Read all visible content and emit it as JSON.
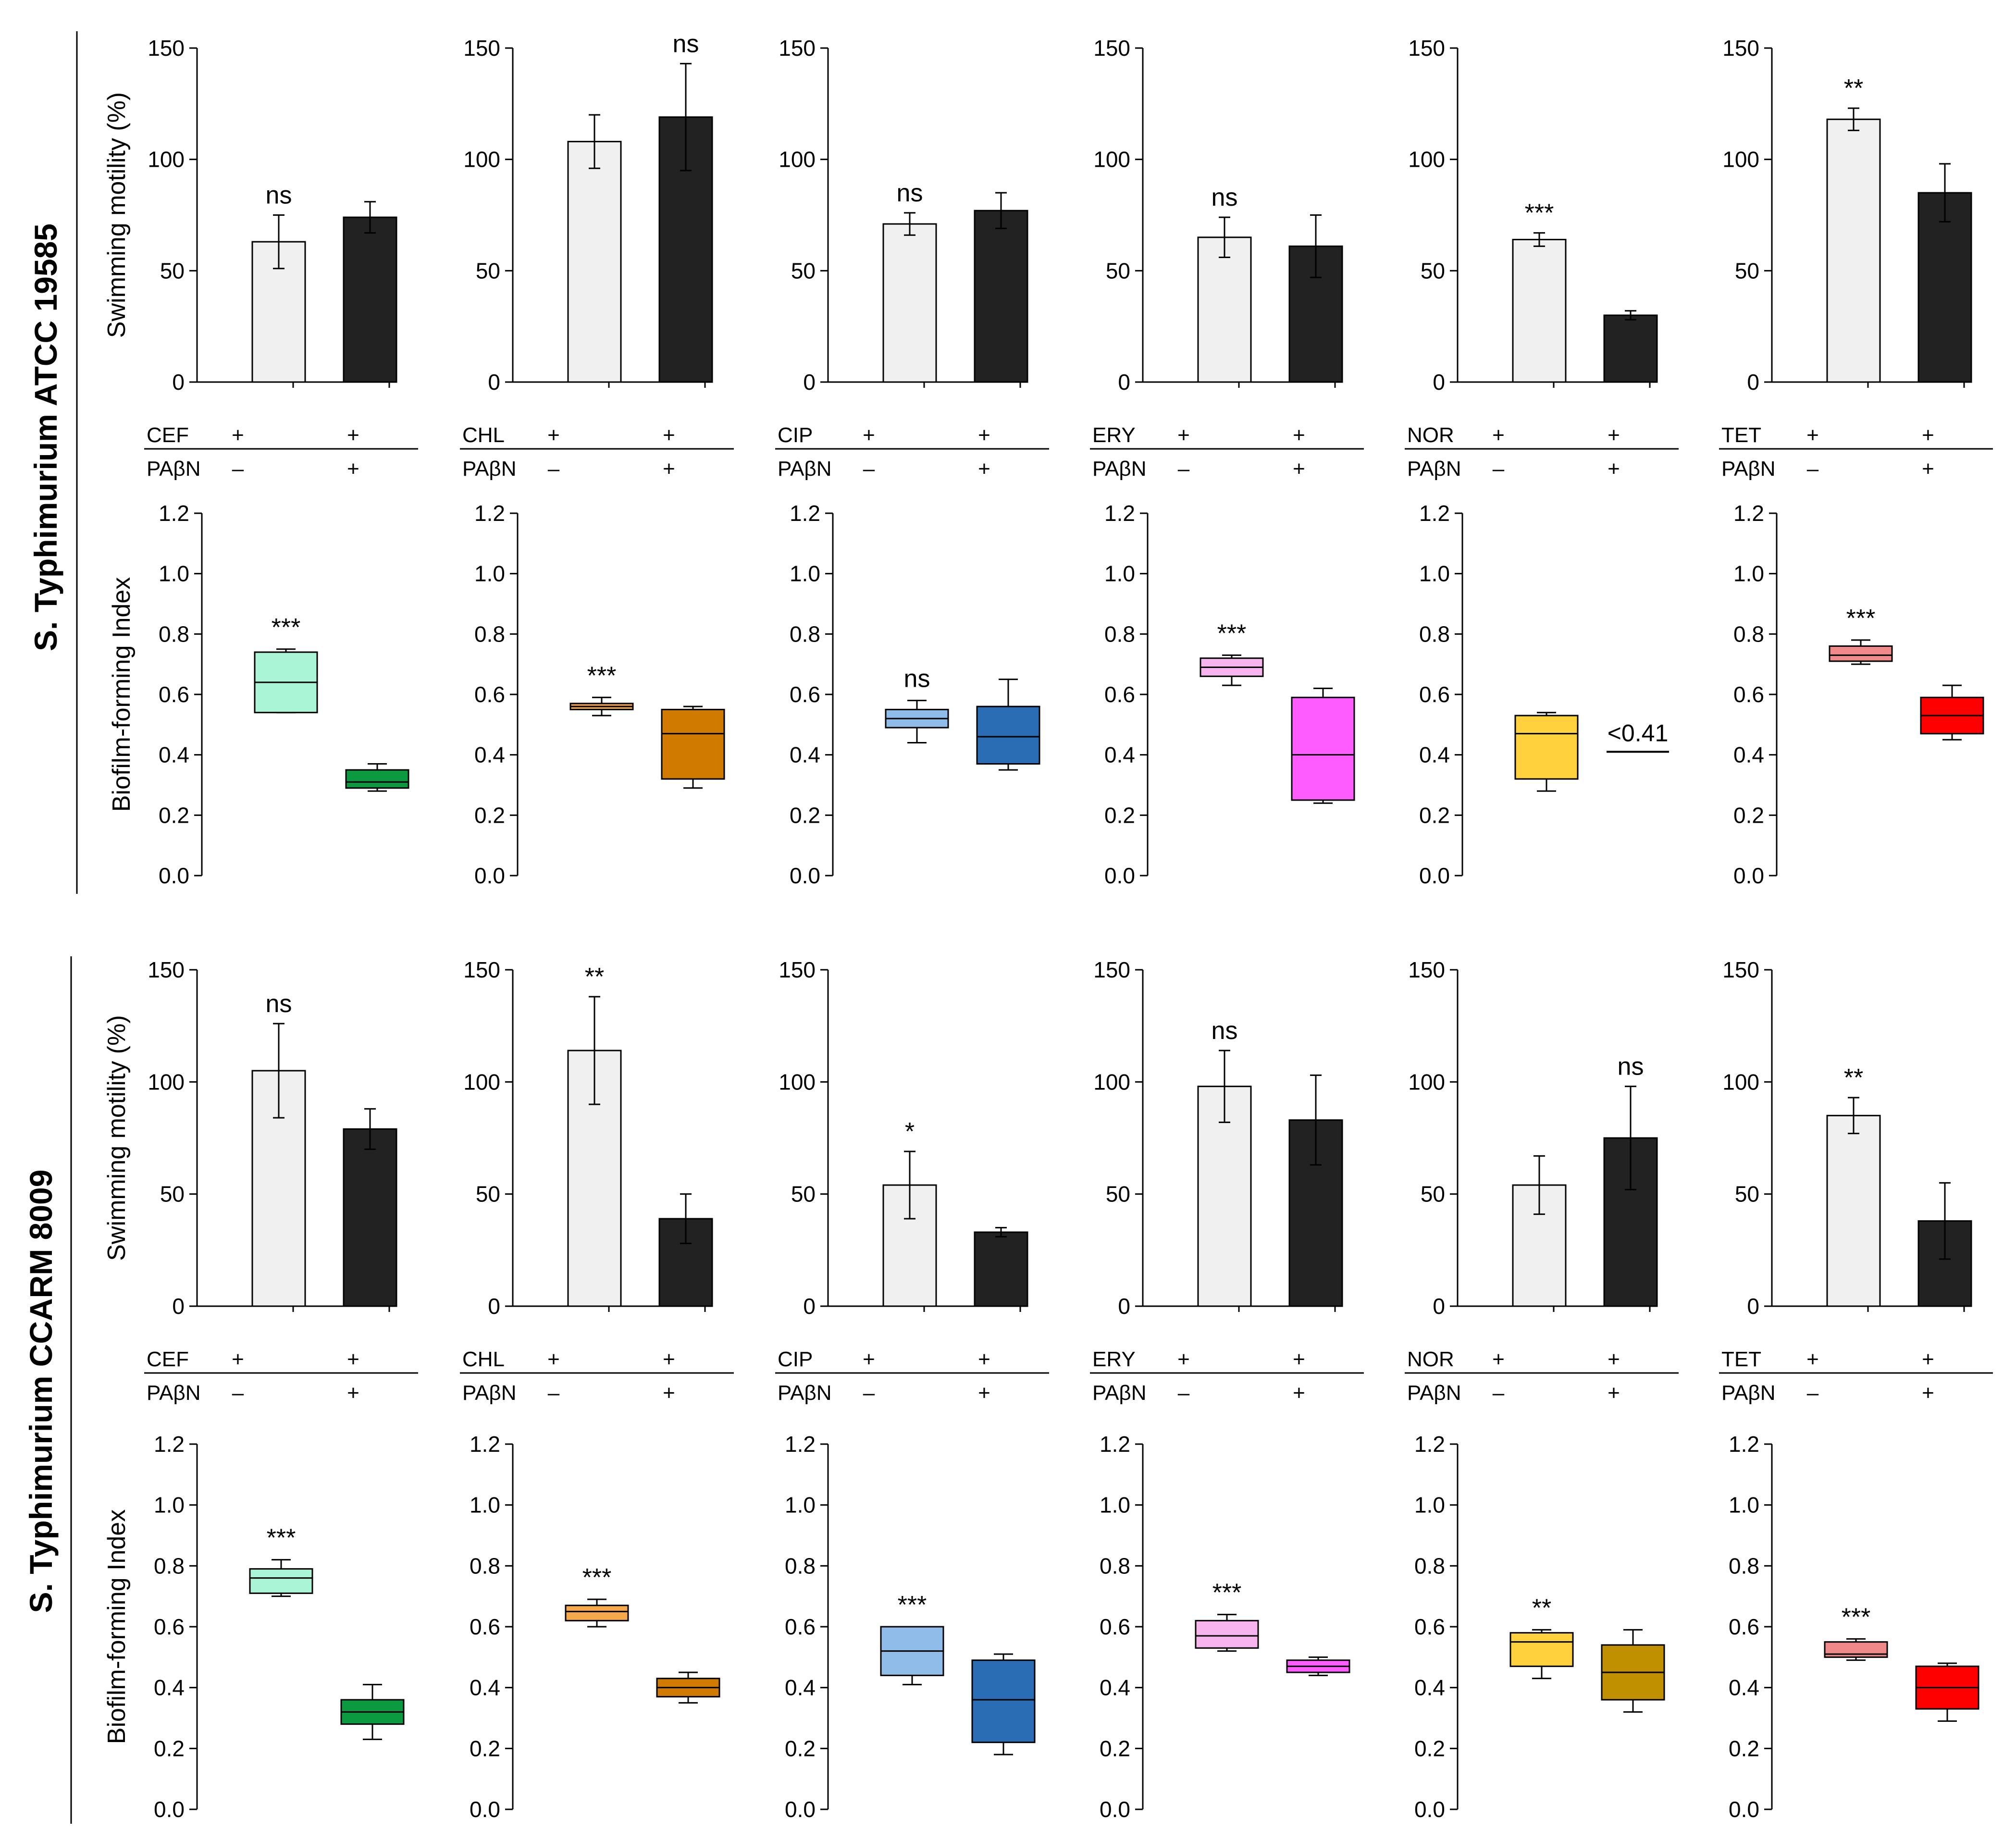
{
  "figure": {
    "panel_ylabel_swim": "Swimming motility (%)",
    "panel_ylabel_biofilm": "Biofilm-forming Index",
    "inhibitor_label": "PAβN",
    "symbols": {
      "present": "+",
      "absent": "–"
    }
  },
  "strains": [
    {
      "id": "atcc",
      "label": "S. Typhimurium ATCC 19585"
    },
    {
      "id": "ccarm",
      "label": "S. Typhimurium CCARM 8009"
    }
  ],
  "colors": {
    "bar_without": "#f0f0f0",
    "bar_with": "#222222",
    "CEF": [
      "#aaf5d6",
      "#0b9a3f"
    ],
    "CHL": [
      "#f5a94a",
      "#d17a00"
    ],
    "CIP": [
      "#8fbce8",
      "#2a6db5"
    ],
    "ERY": [
      "#f8b4ef",
      "#ff5cff"
    ],
    "NOR": [
      "#ffd23d",
      "#c09000"
    ],
    "TET": [
      "#f08a8a",
      "#ff0000"
    ]
  },
  "chart_data": [
    {
      "id": "swim-atcc",
      "type": "bar",
      "strain": "S. Typhimurium ATCC 19585",
      "ylabel": "Swimming motility (%)",
      "ylim": [
        0,
        150
      ],
      "yticks": [
        "0",
        "50",
        "100",
        "150"
      ],
      "antibiotics": [
        "CEF",
        "CHL",
        "CIP",
        "ERY",
        "NOR",
        "TET"
      ],
      "categories": [
        "without PAβN",
        "with PAβN"
      ],
      "series": [
        {
          "name": "CEF",
          "values": [
            63,
            74
          ],
          "errors": [
            12,
            7
          ],
          "significance": "ns",
          "sig_on": 0
        },
        {
          "name": "CHL",
          "values": [
            108,
            119
          ],
          "errors": [
            12,
            24
          ],
          "significance": "ns",
          "sig_on": 1
        },
        {
          "name": "CIP",
          "values": [
            71,
            77
          ],
          "errors": [
            5,
            8
          ],
          "significance": "ns",
          "sig_on": 0
        },
        {
          "name": "ERY",
          "values": [
            65,
            61
          ],
          "errors": [
            9,
            14
          ],
          "significance": "ns",
          "sig_on": 0
        },
        {
          "name": "NOR",
          "values": [
            64,
            30
          ],
          "errors": [
            3,
            2
          ],
          "significance": "***",
          "sig_on": 0
        },
        {
          "name": "TET",
          "values": [
            118,
            85
          ],
          "errors": [
            5,
            13
          ],
          "significance": "**",
          "sig_on": 0
        }
      ]
    },
    {
      "id": "bio-atcc",
      "type": "box",
      "strain": "S. Typhimurium ATCC 19585",
      "ylabel": "Biofilm-forming Index",
      "ylim": [
        0,
        1.2
      ],
      "yticks": [
        "0.0",
        "0.2",
        "0.4",
        "0.6",
        "0.8",
        "1.0",
        "1.2"
      ],
      "antibiotics": [
        "CEF",
        "CHL",
        "CIP",
        "ERY",
        "NOR",
        "TET"
      ],
      "categories": [
        "without PAβN",
        "with PAβN"
      ],
      "series": [
        {
          "name": "CEF",
          "boxes": [
            [
              0.54,
              0.54,
              0.64,
              0.74,
              0.75
            ],
            [
              0.28,
              0.29,
              0.31,
              0.35,
              0.37
            ]
          ],
          "significance": "***"
        },
        {
          "name": "CHL",
          "boxes": [
            [
              0.53,
              0.55,
              0.56,
              0.57,
              0.59
            ],
            [
              0.29,
              0.32,
              0.47,
              0.55,
              0.56
            ]
          ],
          "significance": "***"
        },
        {
          "name": "CIP",
          "boxes": [
            [
              0.44,
              0.49,
              0.52,
              0.55,
              0.58
            ],
            [
              0.35,
              0.37,
              0.46,
              0.56,
              0.65
            ]
          ],
          "significance": "ns"
        },
        {
          "name": "ERY",
          "boxes": [
            [
              0.63,
              0.66,
              0.69,
              0.72,
              0.73
            ],
            [
              0.24,
              0.25,
              0.4,
              0.59,
              0.62
            ]
          ],
          "significance": "***"
        },
        {
          "name": "NOR",
          "boxes": [
            [
              0.28,
              0.32,
              0.47,
              0.53,
              0.54
            ],
            null
          ],
          "significance": "",
          "annotation": "<0.41",
          "annotation_value": 0.41
        },
        {
          "name": "TET",
          "boxes": [
            [
              0.7,
              0.71,
              0.73,
              0.76,
              0.78
            ],
            [
              0.45,
              0.47,
              0.53,
              0.59,
              0.63
            ]
          ],
          "significance": "***"
        }
      ]
    },
    {
      "id": "swim-ccarm",
      "type": "bar",
      "strain": "S. Typhimurium CCARM 8009",
      "ylabel": "Swimming motility (%)",
      "ylim": [
        0,
        150
      ],
      "yticks": [
        "0",
        "50",
        "100",
        "150"
      ],
      "antibiotics": [
        "CEF",
        "CHL",
        "CIP",
        "ERY",
        "NOR",
        "TET"
      ],
      "categories": [
        "without PAβN",
        "with PAβN"
      ],
      "series": [
        {
          "name": "CEF",
          "values": [
            105,
            79
          ],
          "errors": [
            21,
            9
          ],
          "significance": "ns",
          "sig_on": 0
        },
        {
          "name": "CHL",
          "values": [
            114,
            39
          ],
          "errors": [
            24,
            11
          ],
          "significance": "**",
          "sig_on": 0
        },
        {
          "name": "CIP",
          "values": [
            54,
            33
          ],
          "errors": [
            15,
            2
          ],
          "significance": "*",
          "sig_on": 0
        },
        {
          "name": "ERY",
          "values": [
            98,
            83
          ],
          "errors": [
            16,
            20
          ],
          "significance": "ns",
          "sig_on": 0
        },
        {
          "name": "NOR",
          "values": [
            54,
            75
          ],
          "errors": [
            13,
            23
          ],
          "significance": "ns",
          "sig_on": 1
        },
        {
          "name": "TET",
          "values": [
            85,
            38
          ],
          "errors": [
            8,
            17
          ],
          "significance": "**",
          "sig_on": 0
        }
      ]
    },
    {
      "id": "bio-ccarm",
      "type": "box",
      "strain": "S. Typhimurium CCARM 8009",
      "ylabel": "Biofilm-forming Index",
      "ylim": [
        0,
        1.2
      ],
      "yticks": [
        "0.0",
        "0.2",
        "0.4",
        "0.6",
        "0.8",
        "1.0",
        "1.2"
      ],
      "antibiotics": [
        "CEF",
        "CHL",
        "CIP",
        "ERY",
        "NOR",
        "TET"
      ],
      "categories": [
        "without PAβN",
        "with PAβN"
      ],
      "series": [
        {
          "name": "CEF",
          "boxes": [
            [
              0.7,
              0.71,
              0.76,
              0.79,
              0.82
            ],
            [
              0.23,
              0.28,
              0.32,
              0.36,
              0.41
            ]
          ],
          "significance": "***"
        },
        {
          "name": "CHL",
          "boxes": [
            [
              0.6,
              0.62,
              0.65,
              0.67,
              0.69
            ],
            [
              0.35,
              0.37,
              0.4,
              0.43,
              0.45
            ]
          ],
          "significance": "***"
        },
        {
          "name": "CIP",
          "boxes": [
            [
              0.41,
              0.44,
              0.52,
              0.6,
              0.6
            ],
            [
              0.18,
              0.22,
              0.36,
              0.49,
              0.51
            ]
          ],
          "significance": "***"
        },
        {
          "name": "ERY",
          "boxes": [
            [
              0.52,
              0.53,
              0.57,
              0.62,
              0.64
            ],
            [
              0.44,
              0.45,
              0.47,
              0.49,
              0.5
            ]
          ],
          "significance": "***"
        },
        {
          "name": "NOR",
          "boxes": [
            [
              0.43,
              0.47,
              0.55,
              0.58,
              0.59
            ],
            [
              0.32,
              0.36,
              0.45,
              0.54,
              0.59
            ]
          ],
          "significance": "**"
        },
        {
          "name": "TET",
          "boxes": [
            [
              0.49,
              0.5,
              0.51,
              0.55,
              0.56
            ],
            [
              0.29,
              0.33,
              0.4,
              0.47,
              0.48
            ]
          ],
          "significance": "***"
        }
      ]
    }
  ]
}
